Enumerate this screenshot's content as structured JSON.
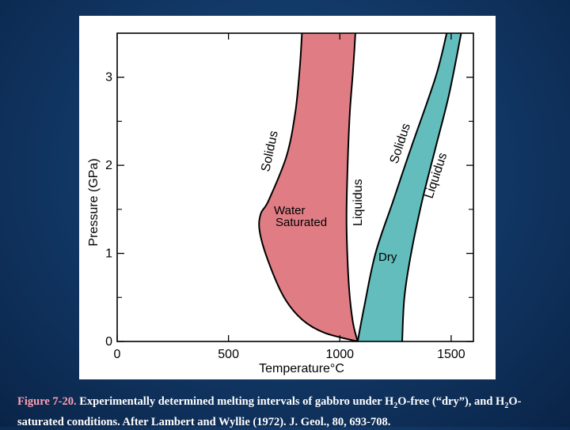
{
  "chart_data": {
    "type": "area",
    "xlabel": "Temperature",
    "xlabel_unit": "°C",
    "ylabel": "Pressure (GPa)",
    "xlim": [
      0,
      1600
    ],
    "ylim": [
      0,
      3.5
    ],
    "x_ticks": [
      "0",
      "500",
      "1000",
      "1500"
    ],
    "x_tick_values": [
      0,
      500,
      1000,
      1500
    ],
    "y_ticks": [
      "0",
      "1",
      "2",
      "3"
    ],
    "y_tick_values": [
      0,
      1,
      2,
      3
    ],
    "minor_y_ticks": [
      0.5,
      1.5,
      2.5
    ],
    "grid": false,
    "colors": {
      "water": "#e07d84",
      "dry": "#63bdbd",
      "overlap": "#4f8a80"
    },
    "series": [
      {
        "name": "Water Saturated",
        "solidus_label": "Solidus",
        "liquidus_label": "Liquidus",
        "solidus": [
          [
            1080,
            0.0
          ],
          [
            930,
            0.1
          ],
          [
            830,
            0.25
          ],
          [
            750,
            0.5
          ],
          [
            680,
            0.9
          ],
          [
            640,
            1.25
          ],
          [
            645,
            1.45
          ],
          [
            680,
            1.6
          ],
          [
            760,
            2.1
          ],
          [
            800,
            2.6
          ],
          [
            820,
            3.1
          ],
          [
            830,
            3.5
          ]
        ],
        "liquidus": [
          [
            1080,
            0.0
          ],
          [
            1060,
            0.2
          ],
          [
            1045,
            0.5
          ],
          [
            1035,
            0.9
          ],
          [
            1030,
            1.4
          ],
          [
            1035,
            2.0
          ],
          [
            1045,
            2.6
          ],
          [
            1060,
            3.1
          ],
          [
            1070,
            3.5
          ]
        ]
      },
      {
        "name": "Dry",
        "solidus_label": "Solidus",
        "liquidus_label": "Liquidus",
        "solidus": [
          [
            1080,
            0.0
          ],
          [
            1110,
            0.4
          ],
          [
            1160,
            1.0
          ],
          [
            1240,
            1.6
          ],
          [
            1320,
            2.2
          ],
          [
            1430,
            3.0
          ],
          [
            1480,
            3.5
          ]
        ],
        "liquidus": [
          [
            1280,
            0.0
          ],
          [
            1290,
            0.5
          ],
          [
            1320,
            1.0
          ],
          [
            1370,
            1.6
          ],
          [
            1430,
            2.2
          ],
          [
            1490,
            2.8
          ],
          [
            1545,
            3.5
          ]
        ]
      }
    ],
    "annotations": [
      "Water Saturated",
      "Dry"
    ]
  },
  "caption": {
    "fig_num": "Figure 7-20.",
    "part1": " Experimentally determined melting intervals of gabbro under H",
    "sub1": "2",
    "part2": "O-free (“dry”), and H",
    "sub2": "2",
    "part3": "O-saturated conditions. After Lambert and Wyllie (1972). J. Geol., 80, 693-708."
  }
}
